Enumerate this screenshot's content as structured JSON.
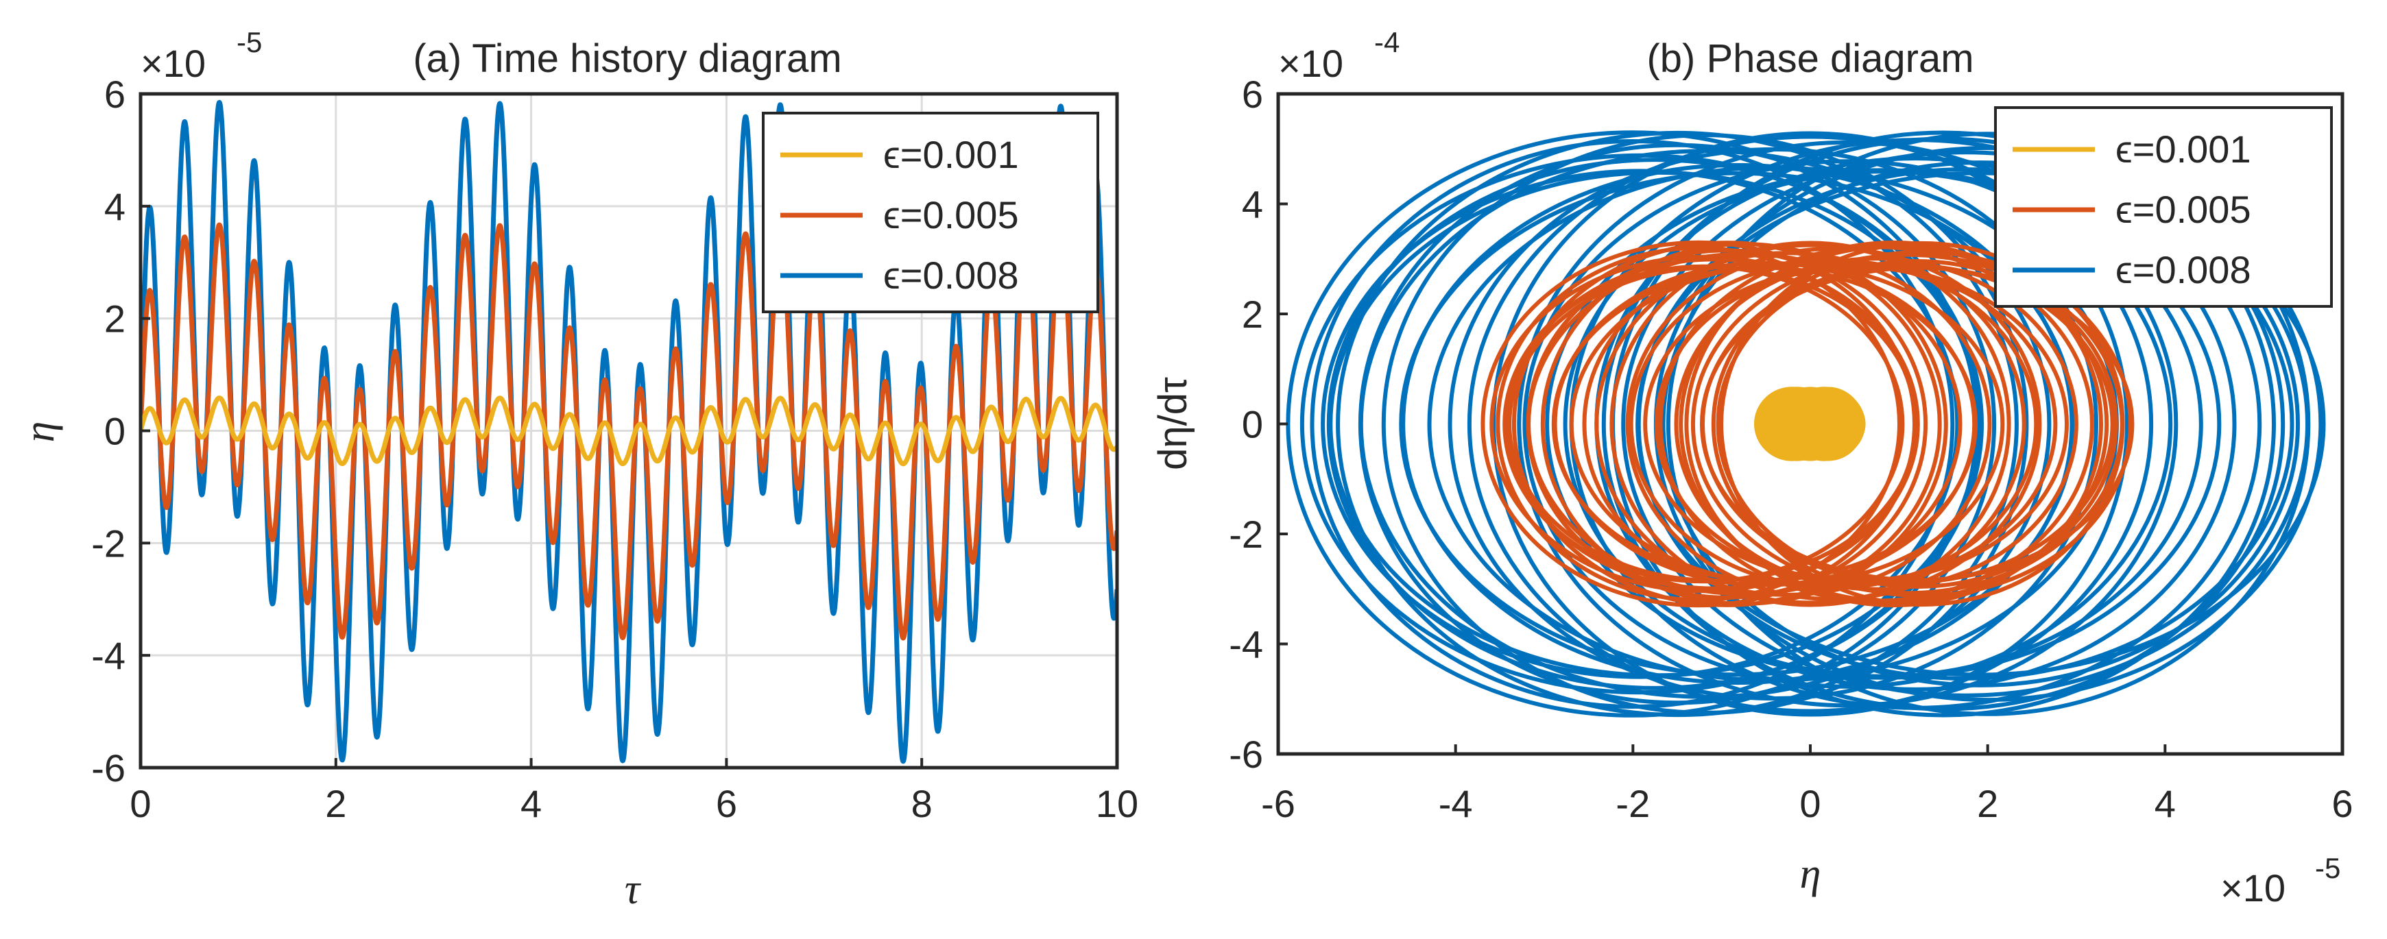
{
  "chart_data": [
    {
      "id": "a",
      "type": "line",
      "title": "(a) Time history diagram",
      "xlabel": "τ",
      "ylabel": "η",
      "xlim": [
        0,
        10
      ],
      "ylim": [
        -6,
        6
      ],
      "y_exponent_label": "×10",
      "y_exponent": "-5",
      "x_ticks": [
        0,
        2,
        4,
        6,
        8,
        10
      ],
      "y_ticks": [
        -6,
        -4,
        -2,
        0,
        2,
        4,
        6
      ],
      "grid": true,
      "legend_position": "top-right",
      "series": [
        {
          "name": "ϵ=0.001",
          "color": "#EDB120",
          "amplitude_a": 0.35,
          "amplitude_b": 0.24,
          "peak": 0.6
        },
        {
          "name": "ϵ=0.005",
          "color": "#D95319",
          "amplitude_a": 2.2,
          "amplitude_b": 1.5,
          "peak": 3.7
        },
        {
          "name": "ϵ=0.008",
          "color": "#0072BD",
          "amplitude_a": 3.5,
          "amplitude_b": 2.4,
          "peak": 5.9
        }
      ],
      "frequencies": {
        "fast": 17.5,
        "slow": 2.2
      }
    },
    {
      "id": "b",
      "type": "line",
      "title": "(b) Phase diagram",
      "xlabel": "η",
      "ylabel": "dη/dτ",
      "xlim": [
        -6,
        6
      ],
      "ylim": [
        -6,
        6
      ],
      "x_exponent_label": "×10",
      "x_exponent": "-5",
      "y_exponent_label": "×10",
      "y_exponent": "-4",
      "x_ticks": [
        -6,
        -4,
        -2,
        0,
        2,
        4,
        6
      ],
      "y_ticks": [
        -6,
        -4,
        -2,
        0,
        2,
        4,
        6
      ],
      "grid": false,
      "legend_position": "top-right",
      "series": [
        {
          "name": "ϵ=0.001",
          "color": "#EDB120",
          "eta_max": 0.6,
          "deta_max": 0.62
        },
        {
          "name": "ϵ=0.005",
          "color": "#D95319",
          "eta_max": 3.7,
          "deta_max": 3.3
        },
        {
          "name": "ϵ=0.008",
          "color": "#0072BD",
          "eta_max": 5.9,
          "deta_max": 5.3
        }
      ]
    }
  ]
}
